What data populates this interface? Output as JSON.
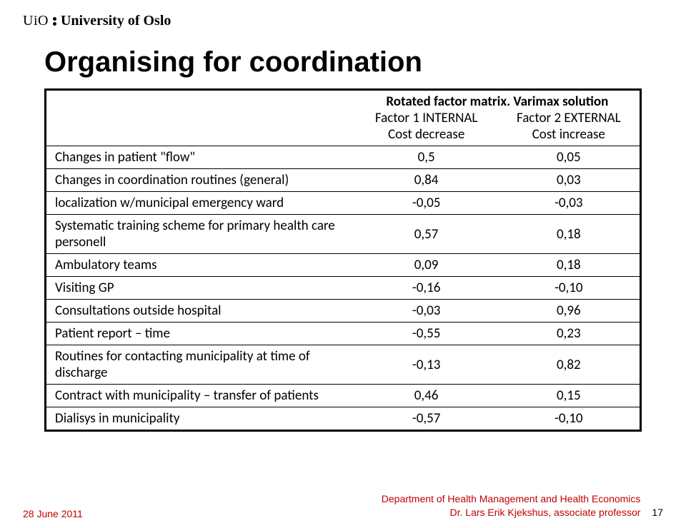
{
  "logo": {
    "uio": "UiO",
    "name": "University of Oslo"
  },
  "title": "Organising for coordination",
  "table": {
    "top_header": "Rotated factor matrix. Varimax solution",
    "columns": [
      {
        "line1": "Factor 1 INTERNAL",
        "line2": "Cost decrease"
      },
      {
        "line1": "Factor 2 EXTERNAL",
        "line2": "Cost increase"
      }
    ],
    "rows": [
      {
        "label": "Changes in patient \"flow\"",
        "c1": "0,5",
        "c2": "0,05"
      },
      {
        "label": "Changes in coordination routines (general)",
        "c1": "0,84",
        "c2": "0,03"
      },
      {
        "label": "localization w/municipal emergency ward",
        "c1": "-0,05",
        "c2": "-0,03"
      },
      {
        "label": "Systematic training scheme for primary health care personell",
        "c1": "0,57",
        "c2": "0,18"
      },
      {
        "label": "Ambulatory teams",
        "c1": "0,09",
        "c2": "0,18"
      },
      {
        "label": "Visiting GP",
        "c1": "-0,16",
        "c2": "-0,10"
      },
      {
        "label": "Consultations outside hospital",
        "c1": "-0,03",
        "c2": "0,96"
      },
      {
        "label": "Patient report – time",
        "c1": "-0,55",
        "c2": "0,23"
      },
      {
        "label": "Routines for contacting municipality at time of discharge",
        "c1": "-0,13",
        "c2": "0,82"
      },
      {
        "label": "Contract with municipality – transfer of patients",
        "c1": "0,46",
        "c2": "0,15"
      },
      {
        "label": "Dialisys in municipality",
        "c1": "-0,57",
        "c2": "-0,10"
      }
    ]
  },
  "footer": {
    "date": "28 June 2011",
    "dept": "Department of Health Management and Health Economics",
    "author": "Dr. Lars Erik Kjekshus, associate professor",
    "page": "17"
  },
  "style": {
    "title_fontsize_pt": 30,
    "table_fontsize_pt": 14,
    "footer_fontsize_pt": 10,
    "border_color": "#000000",
    "red_color": "#c00000",
    "background": "#ffffff"
  }
}
